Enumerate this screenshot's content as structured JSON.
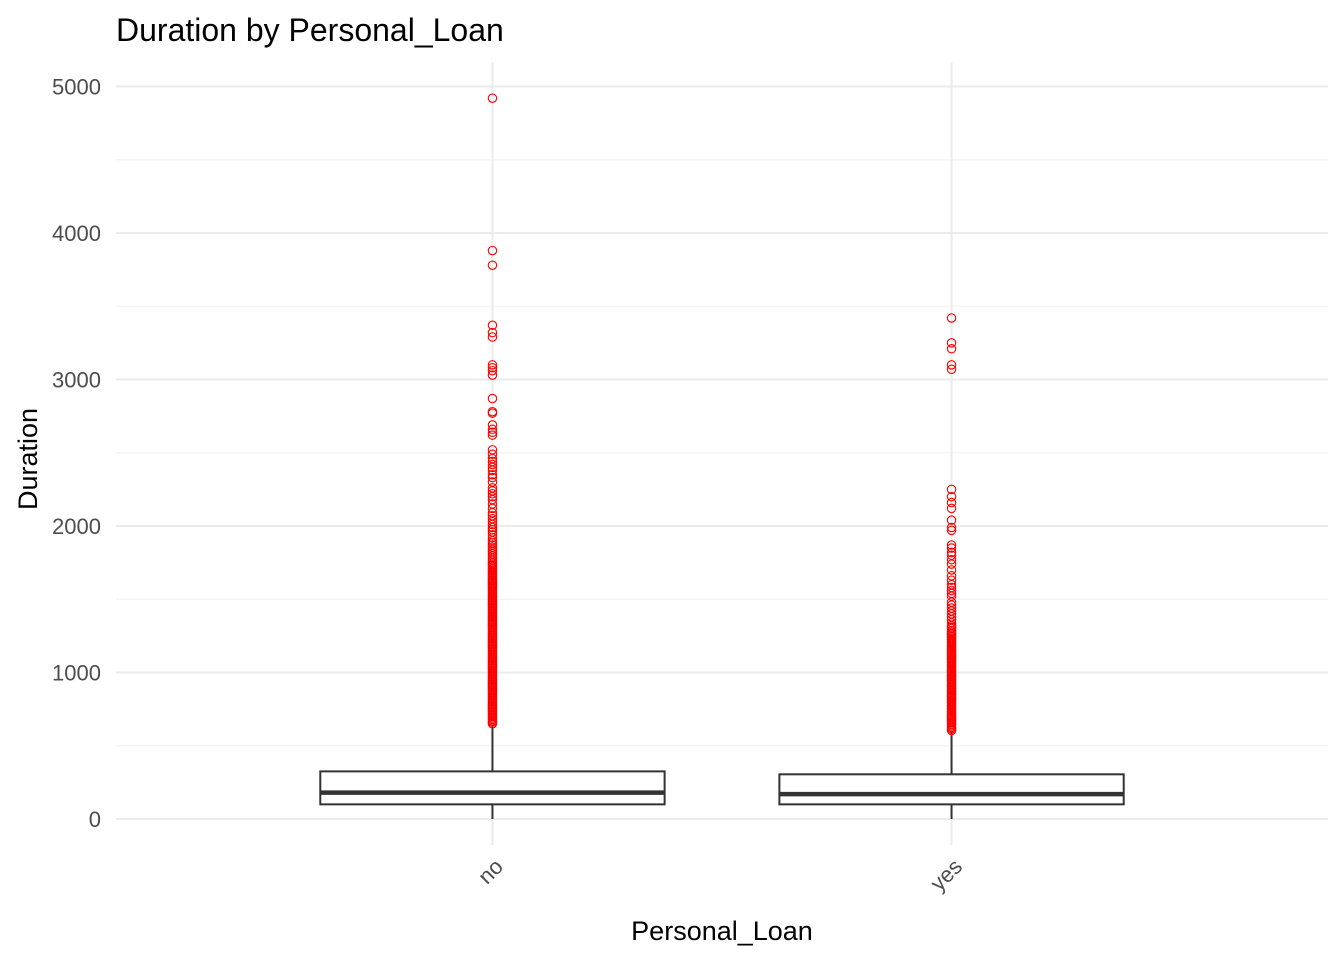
{
  "chart_data": {
    "type": "boxplot",
    "title": "Duration by Personal_Loan",
    "xlabel": "Personal_Loan",
    "ylabel": "Duration",
    "categories": [
      "no",
      "yes"
    ],
    "ylim": [
      -60,
      5160
    ],
    "y_ticks": [
      0,
      1000,
      2000,
      3000,
      4000,
      5000
    ],
    "y_tick_labels": [
      "0",
      "1000",
      "2000",
      "3000",
      "4000",
      "5000"
    ],
    "grid": true,
    "outlier_color": "#ff0000",
    "box_color": "#333333",
    "boxes": [
      {
        "category": "no",
        "lower_whisker": 0,
        "q1": 100,
        "median": 180,
        "q3": 325,
        "upper_whisker": 645,
        "outliers": [
          650,
          660,
          670,
          680,
          690,
          700,
          710,
          720,
          730,
          740,
          750,
          760,
          770,
          780,
          790,
          800,
          810,
          820,
          830,
          840,
          850,
          860,
          870,
          880,
          890,
          900,
          910,
          920,
          930,
          940,
          950,
          960,
          970,
          980,
          990,
          1000,
          1010,
          1020,
          1030,
          1040,
          1050,
          1060,
          1070,
          1080,
          1090,
          1100,
          1110,
          1120,
          1130,
          1140,
          1150,
          1160,
          1170,
          1180,
          1190,
          1200,
          1210,
          1220,
          1230,
          1240,
          1250,
          1260,
          1270,
          1280,
          1290,
          1300,
          1310,
          1320,
          1330,
          1340,
          1350,
          1360,
          1370,
          1380,
          1390,
          1400,
          1410,
          1420,
          1430,
          1440,
          1450,
          1460,
          1470,
          1480,
          1490,
          1500,
          1510,
          1520,
          1530,
          1540,
          1550,
          1560,
          1570,
          1580,
          1590,
          1600,
          1610,
          1620,
          1630,
          1640,
          1650,
          1660,
          1670,
          1680,
          1690,
          1700,
          1710,
          1720,
          1730,
          1740,
          1750,
          1765,
          1780,
          1795,
          1810,
          1825,
          1840,
          1855,
          1870,
          1885,
          1900,
          1920,
          1940,
          1960,
          1975,
          1990,
          2010,
          2030,
          2050,
          2070,
          2090,
          2120,
          2150,
          2180,
          2200,
          2220,
          2240,
          2260,
          2300,
          2330,
          2350,
          2380,
          2400,
          2420,
          2440,
          2460,
          2490,
          2520,
          2620,
          2640,
          2660,
          2690,
          2770,
          2780,
          2870,
          3030,
          3060,
          3080,
          3100,
          3290,
          3320,
          3370,
          3780,
          3880,
          4920
        ]
      },
      {
        "category": "yes",
        "lower_whisker": 0,
        "q1": 100,
        "median": 170,
        "q3": 305,
        "upper_whisker": 600,
        "outliers": [
          605,
          615,
          625,
          635,
          645,
          655,
          665,
          675,
          685,
          695,
          705,
          715,
          725,
          735,
          745,
          755,
          765,
          775,
          785,
          795,
          805,
          815,
          825,
          835,
          845,
          855,
          865,
          875,
          885,
          895,
          905,
          915,
          925,
          935,
          945,
          955,
          965,
          975,
          985,
          995,
          1005,
          1015,
          1025,
          1035,
          1045,
          1055,
          1065,
          1075,
          1085,
          1095,
          1105,
          1115,
          1125,
          1135,
          1145,
          1155,
          1165,
          1175,
          1185,
          1195,
          1205,
          1215,
          1225,
          1235,
          1245,
          1255,
          1265,
          1275,
          1285,
          1300,
          1310,
          1320,
          1340,
          1360,
          1380,
          1400,
          1420,
          1440,
          1460,
          1480,
          1520,
          1540,
          1560,
          1580,
          1600,
          1630,
          1660,
          1700,
          1740,
          1770,
          1800,
          1820,
          1850,
          1870,
          1970,
          1990,
          2040,
          2120,
          2160,
          2200,
          2250,
          3070,
          3100,
          3210,
          3250,
          3420
        ]
      }
    ]
  }
}
